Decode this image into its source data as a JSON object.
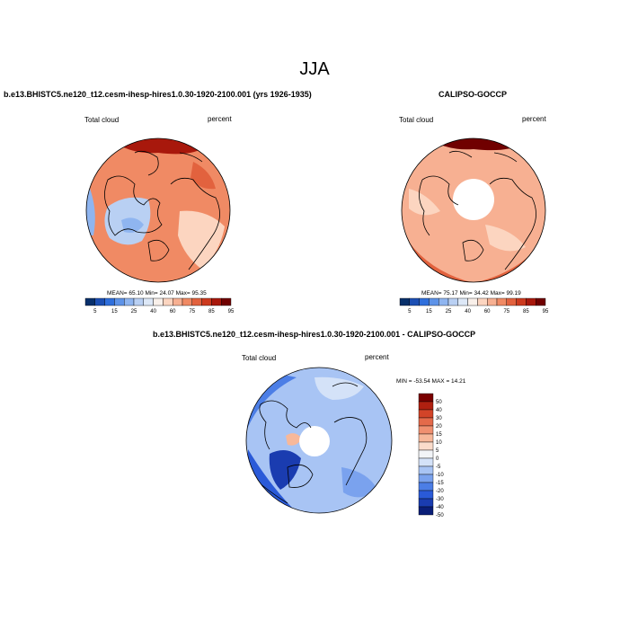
{
  "figure": {
    "season_title": "JJA"
  },
  "chart_data": [
    {
      "type": "heatmap",
      "projection": "north polar stereographic",
      "title": "b.e13.BHISTC5.ne120_t12.cesm-ihesp-hires1.0.30-1920-2100.001 (yrs 1926-1935)",
      "variable_label": "Total cloud",
      "units": "percent",
      "stats_text": "MEAN=  65.10  Min=  24.07  Max=  95.35",
      "mean": 65.1,
      "min": 24.07,
      "max": 95.35,
      "colorbar": {
        "orientation": "horizontal",
        "levels": [
          5,
          10,
          15,
          20,
          25,
          30,
          40,
          50,
          60,
          70,
          75,
          80,
          85,
          90,
          95
        ],
        "tick_labels": [
          "5",
          "15",
          "25",
          "40",
          "60",
          "75",
          "85",
          "95"
        ]
      }
    },
    {
      "type": "heatmap",
      "projection": "north polar stereographic",
      "title": "CALIPSO-GOCCP",
      "variable_label": "Total cloud",
      "units": "percent",
      "stats_text": "MEAN=  75.17  Min=  34.42  Max=  99.19",
      "mean": 75.17,
      "min": 34.42,
      "max": 99.19,
      "colorbar": {
        "orientation": "horizontal",
        "levels": [
          5,
          10,
          15,
          20,
          25,
          30,
          40,
          50,
          60,
          70,
          75,
          80,
          85,
          90,
          95
        ],
        "tick_labels": [
          "5",
          "15",
          "25",
          "40",
          "60",
          "75",
          "85",
          "95"
        ]
      }
    },
    {
      "type": "heatmap",
      "projection": "north polar stereographic",
      "title": "b.e13.BHISTC5.ne120_t12.cesm-ihesp-hires1.0.30-1920-2100.001 - CALIPSO-GOCCP",
      "variable_label": "Total cloud",
      "units": "percent",
      "stats_text": "MIN = -53.54 MAX =  14.21",
      "min": -53.54,
      "max": 14.21,
      "colorbar": {
        "orientation": "vertical",
        "levels": [
          -50,
          -40,
          -30,
          -20,
          -15,
          -10,
          -5,
          0,
          5,
          10,
          15,
          20,
          30,
          40,
          50
        ],
        "tick_labels": [
          "50",
          "40",
          "30",
          "20",
          "15",
          "10",
          "5",
          "0",
          "-5",
          "-10",
          "-15",
          "-20",
          "-30",
          "-40",
          "-50"
        ]
      }
    }
  ],
  "colors": {
    "seq": [
      "#08306b",
      "#1c4fb3",
      "#2f6fdc",
      "#5e93e8",
      "#8fb5f0",
      "#b9d0f3",
      "#dde8f7",
      "#f9f0ea",
      "#fcd5c0",
      "#f7b092",
      "#f08a64",
      "#e2623e",
      "#cc3a1e",
      "#a8180c",
      "#700000"
    ],
    "div": [
      "#0a1e78",
      "#1a3cb0",
      "#2a5ad8",
      "#4c7ee6",
      "#7aa2ee",
      "#a8c4f4",
      "#d4e2f8",
      "#f2f4f7",
      "#fbdccb",
      "#f7b89a",
      "#f09070",
      "#e46a4a",
      "#d24428",
      "#b02010",
      "#7a0000"
    ]
  }
}
